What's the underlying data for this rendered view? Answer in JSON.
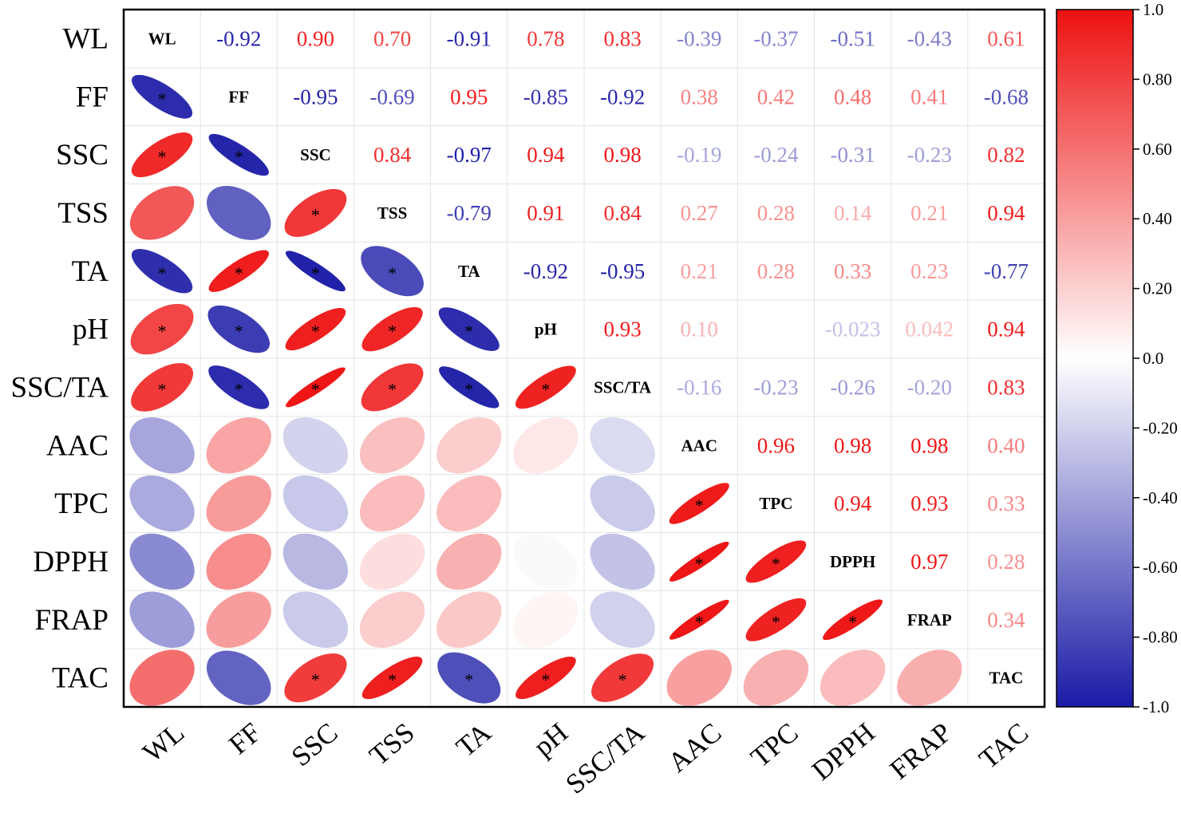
{
  "chart_data": {
    "type": "heatmap",
    "subtype": "correlation-matrix",
    "title": "",
    "variables": [
      "WL",
      "FF",
      "SSC",
      "TSS",
      "TA",
      "pH",
      "SSC/TA",
      "AAC",
      "TPC",
      "DPPH",
      "FRAP",
      "TAC"
    ],
    "upper_labels": [
      [
        "",
        "-0.92",
        "0.90",
        "0.70",
        "-0.91",
        "0.78",
        "0.83",
        "-0.39",
        "-0.37",
        "-0.51",
        "-0.43",
        "0.61"
      ],
      [
        "",
        "",
        "-0.95",
        "-0.69",
        "0.95",
        "-0.85",
        "-0.92",
        "0.38",
        "0.42",
        "0.48",
        "0.41",
        "-0.68"
      ],
      [
        "",
        "",
        "",
        "0.84",
        "-0.97",
        "0.94",
        "0.98",
        "-0.19",
        "-0.24",
        "-0.31",
        "-0.23",
        "0.82"
      ],
      [
        "",
        "",
        "",
        "",
        "-0.79",
        "0.91",
        "0.84",
        "0.27",
        "0.28",
        "0.14",
        "0.21",
        "0.94"
      ],
      [
        "",
        "",
        "",
        "",
        "",
        "-0.92",
        "-0.95",
        "0.21",
        "0.28",
        "0.33",
        "0.23",
        "-0.77"
      ],
      [
        "",
        "",
        "",
        "",
        "",
        "",
        "0.93",
        "0.10",
        "",
        "-0.023",
        "0.042",
        "0.94"
      ],
      [
        "",
        "",
        "",
        "",
        "",
        "",
        "",
        "-0.16",
        "-0.23",
        "-0.26",
        "-0.20",
        "0.83"
      ],
      [
        "",
        "",
        "",
        "",
        "",
        "",
        "",
        "",
        "0.96",
        "0.98",
        "0.98",
        "0.40"
      ],
      [
        "",
        "",
        "",
        "",
        "",
        "",
        "",
        "",
        "",
        "0.94",
        "0.93",
        "0.33"
      ],
      [
        "",
        "",
        "",
        "",
        "",
        "",
        "",
        "",
        "",
        "",
        "0.97",
        "0.28"
      ],
      [
        "",
        "",
        "",
        "",
        "",
        "",
        "",
        "",
        "",
        "",
        "",
        "0.34"
      ],
      [
        "",
        "",
        "",
        "",
        "",
        "",
        "",
        "",
        "",
        "",
        "",
        ""
      ]
    ],
    "lower_values": [
      [],
      [
        -0.92
      ],
      [
        0.9,
        -0.95
      ],
      [
        0.7,
        -0.69,
        0.84
      ],
      [
        -0.91,
        0.95,
        -0.97,
        -0.79
      ],
      [
        0.78,
        -0.85,
        0.94,
        0.91,
        -0.92
      ],
      [
        0.83,
        -0.92,
        0.98,
        0.84,
        -0.95,
        0.93
      ],
      [
        -0.39,
        0.38,
        -0.19,
        0.27,
        0.21,
        0.1,
        -0.16
      ],
      [
        -0.37,
        0.42,
        -0.24,
        0.28,
        0.28,
        0.0,
        -0.23,
        0.96
      ],
      [
        -0.51,
        0.48,
        -0.31,
        0.14,
        0.33,
        -0.023,
        -0.26,
        0.98,
        0.94
      ],
      [
        -0.43,
        0.41,
        -0.23,
        0.21,
        0.23,
        0.042,
        -0.2,
        0.98,
        0.93,
        0.97
      ],
      [
        0.61,
        -0.68,
        0.82,
        0.94,
        -0.77,
        0.94,
        0.83,
        0.4,
        0.33,
        0.28,
        0.34
      ]
    ],
    "significance_mark": "*",
    "significance_threshold": 0.75,
    "colorbar": {
      "min": -1.0,
      "max": 1.0,
      "tick_labels": [
        "1.0",
        "0.80",
        "0.60",
        "0.40",
        "0.20",
        "0.0",
        "-0.20",
        "-0.40",
        "-0.60",
        "-0.80",
        "-1.0"
      ],
      "colors": {
        "negative": "#1a1aa6",
        "zero": "#ffffff",
        "positive": "#ee1111"
      }
    }
  }
}
